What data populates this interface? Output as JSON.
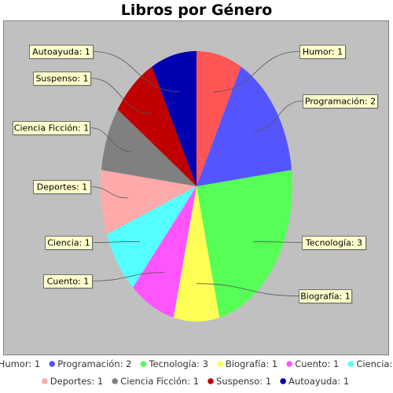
{
  "chart_data": {
    "type": "pie",
    "title": "Libros por Género",
    "categories": [
      "Humor",
      "Programación",
      "Tecnología",
      "Biografía",
      "Cuento",
      "Ciencia",
      "Deportes",
      "Ciencia Ficción",
      "Suspenso",
      "Autoayuda"
    ],
    "values": [
      1,
      2,
      3,
      1,
      1,
      1,
      1,
      1,
      1,
      1
    ],
    "slice_labels": [
      "Humor: 1",
      "Programación: 2",
      "Tecnología: 3",
      "Biografía: 1",
      "Cuento: 1",
      "Ciencia: 1",
      "Deportes: 1",
      "Ciencia Ficción: 1",
      "Suspenso: 1",
      "Autoayuda: 1"
    ],
    "colors": [
      "#ff5555",
      "#5555ff",
      "#55ff55",
      "#ffff55",
      "#ff55ff",
      "#55ffff",
      "#ffaaaa",
      "#808080",
      "#c00000",
      "#0000b0"
    ],
    "legend_position": "bottom",
    "plot_background": "#c0c0c0"
  }
}
